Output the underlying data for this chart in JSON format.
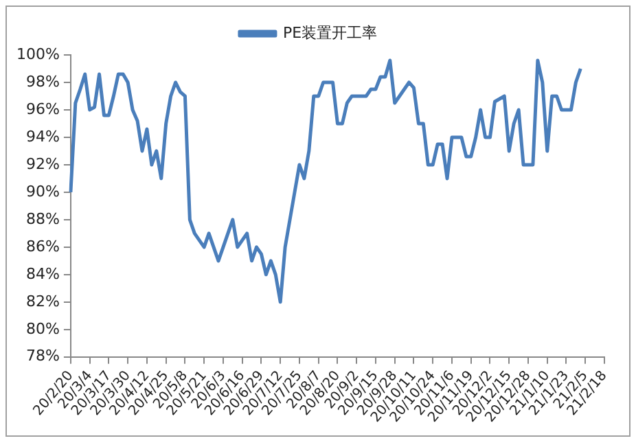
{
  "chart_data": {
    "type": "line",
    "legend": "top",
    "categories": [
      "20/2/20",
      null,
      null,
      null,
      "20/3/4",
      null,
      null,
      null,
      "20/3/17",
      null,
      null,
      null,
      "20/3/30",
      null,
      null,
      null,
      "20/4/12",
      null,
      null,
      null,
      "20/4/25",
      null,
      null,
      null,
      "20/5/8",
      null,
      null,
      null,
      "20/5/21",
      null,
      null,
      null,
      "20/6/3",
      null,
      null,
      null,
      "20/6/16",
      null,
      null,
      null,
      "20/6/29",
      null,
      null,
      null,
      "20/7/12",
      null,
      null,
      null,
      "20/7/25",
      null,
      null,
      null,
      "20/8/7",
      null,
      null,
      null,
      "20/8/20",
      null,
      null,
      null,
      "20/9/2",
      null,
      null,
      null,
      "20/9/15",
      null,
      null,
      null,
      "20/9/28",
      null,
      null,
      null,
      "20/10/11",
      null,
      null,
      null,
      "20/10/24",
      null,
      null,
      null,
      "20/11/6",
      null,
      null,
      null,
      "20/11/19",
      null,
      null,
      null,
      "20/12/2",
      null,
      null,
      null,
      "20/12/15",
      null,
      null,
      null,
      "20/12/28",
      null,
      null,
      null,
      "21/1/10",
      null,
      null,
      null,
      "21/1/23",
      null,
      null,
      null,
      "21/2/5",
      null,
      null,
      null,
      "21/2/18"
    ],
    "series": [
      {
        "name": "PE装置开工率",
        "color": "#4a7ebb",
        "values": [
          90,
          96.5,
          97.5,
          98.6,
          96,
          96.2,
          98.6,
          95.6,
          95.6,
          97,
          98.6,
          98.6,
          98,
          96,
          95.2,
          93,
          94.6,
          92,
          93,
          91,
          95,
          97,
          98,
          97.3,
          97,
          88,
          87,
          86.5,
          86,
          87,
          86,
          85,
          86,
          87,
          88,
          86,
          86.5,
          87,
          85,
          86,
          85.5,
          84,
          85,
          84,
          82,
          86,
          88,
          90,
          92,
          91,
          93,
          97,
          97,
          98,
          98,
          98,
          95,
          95,
          96.5,
          97,
          97,
          97,
          97,
          97.5,
          97.5,
          98.4,
          98.4,
          99.6,
          96.5,
          97,
          97.5,
          98,
          97.6,
          95,
          95,
          92,
          92,
          93.5,
          93.5,
          91,
          94,
          94,
          94,
          92.6,
          92.6,
          94,
          96,
          94,
          94,
          96.6,
          96.8,
          97,
          93,
          95,
          96,
          92,
          92,
          92,
          99.6,
          98,
          93,
          97,
          97,
          96,
          96,
          96,
          98,
          99,
          null,
          null,
          null,
          null,
          null
        ]
      }
    ],
    "ylim": [
      78,
      100
    ],
    "yticks": [
      {
        "value": 78,
        "label": "78%"
      },
      {
        "value": 80,
        "label": "80%"
      },
      {
        "value": 82,
        "label": "82%"
      },
      {
        "value": 84,
        "label": "84%"
      },
      {
        "value": 86,
        "label": "86%"
      },
      {
        "value": 88,
        "label": "88%"
      },
      {
        "value": 90,
        "label": "90%"
      },
      {
        "value": 92,
        "label": "92%"
      },
      {
        "value": 94,
        "label": "94%"
      },
      {
        "value": 96,
        "label": "96%"
      },
      {
        "value": 98,
        "label": "98%"
      },
      {
        "value": 100,
        "label": "100%"
      }
    ],
    "grid": false,
    "marker": "none"
  }
}
